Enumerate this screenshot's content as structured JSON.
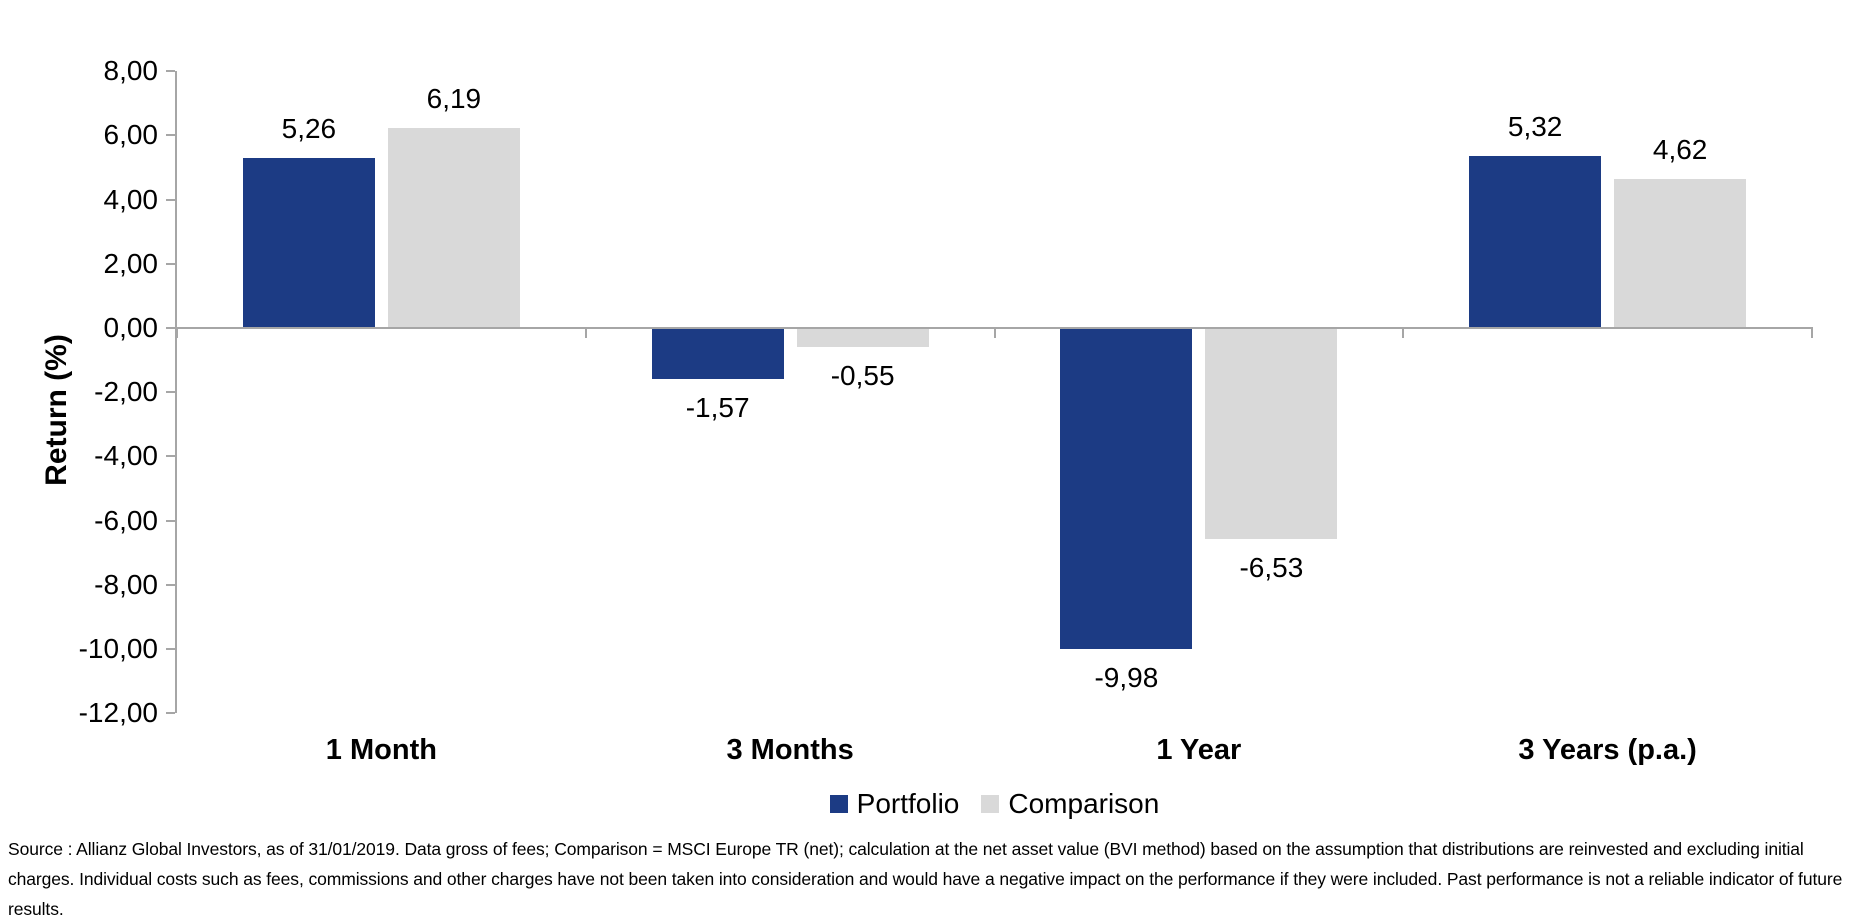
{
  "chart_data": {
    "type": "bar",
    "title": "",
    "categories": [
      "1 Month",
      "3 Months",
      "1 Year",
      "3 Years (p.a.)"
    ],
    "series": [
      {
        "name": "Portfolio",
        "color": "#1C3B84",
        "values": [
          5.26,
          -1.57,
          -9.98,
          5.32
        ]
      },
      {
        "name": "Comparison",
        "color": "#D9D9D9",
        "values": [
          6.19,
          -0.55,
          -6.53,
          4.62
        ]
      }
    ],
    "xlabel": "",
    "ylabel": "Return (%)",
    "ylim": [
      -12,
      8
    ],
    "ytick_step": 2,
    "ytick_labels": [
      "8,00",
      "6,00",
      "4,00",
      "2,00",
      "0,00",
      "-2,00",
      "-4,00",
      "-6,00",
      "-8,00",
      "-10,00",
      "-12,00"
    ],
    "decimal_separator": ",",
    "grid": false,
    "legend_position": "bottom-center",
    "axis_color": "#A6A6A6",
    "text_color": "#000000",
    "value_labels_shown": true
  },
  "footer": {
    "source_text": "Source : Allianz Global Investors, as of 31/01/2019. Data gross of fees; Comparison = MSCI Europe TR (net); calculation at the net asset value (BVI method) based on the assumption that distributions are reinvested and excluding initial charges. Individual costs such as fees, commissions and other charges have not been taken into consideration and would have a negative impact on the performance if they were included. Past performance is not a reliable indicator of future results."
  }
}
